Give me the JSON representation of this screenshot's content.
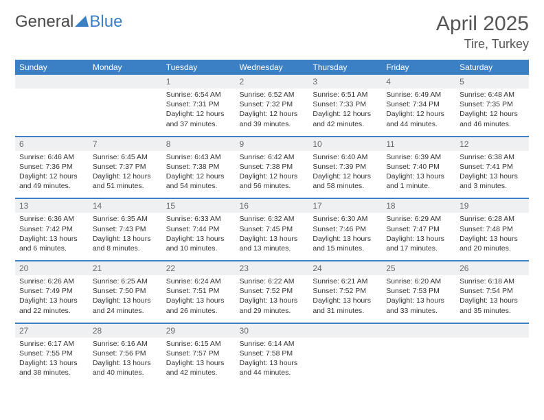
{
  "logo": {
    "text1": "General",
    "text2": "Blue",
    "triangle_color": "#3b7fc4"
  },
  "title": "April 2025",
  "location": "Tire, Turkey",
  "colors": {
    "header_bg": "#3b7fc4",
    "header_text": "#ffffff",
    "daynum_bg": "#eef0f1",
    "daynum_text": "#6a6a6a",
    "week_border": "#3b7fc4",
    "body_text": "#333333",
    "title_text": "#555555"
  },
  "day_names": [
    "Sunday",
    "Monday",
    "Tuesday",
    "Wednesday",
    "Thursday",
    "Friday",
    "Saturday"
  ],
  "weeks": [
    [
      null,
      null,
      {
        "n": "1",
        "sr": "6:54 AM",
        "ss": "7:31 PM",
        "dl": "12 hours and 37 minutes."
      },
      {
        "n": "2",
        "sr": "6:52 AM",
        "ss": "7:32 PM",
        "dl": "12 hours and 39 minutes."
      },
      {
        "n": "3",
        "sr": "6:51 AM",
        "ss": "7:33 PM",
        "dl": "12 hours and 42 minutes."
      },
      {
        "n": "4",
        "sr": "6:49 AM",
        "ss": "7:34 PM",
        "dl": "12 hours and 44 minutes."
      },
      {
        "n": "5",
        "sr": "6:48 AM",
        "ss": "7:35 PM",
        "dl": "12 hours and 46 minutes."
      }
    ],
    [
      {
        "n": "6",
        "sr": "6:46 AM",
        "ss": "7:36 PM",
        "dl": "12 hours and 49 minutes."
      },
      {
        "n": "7",
        "sr": "6:45 AM",
        "ss": "7:37 PM",
        "dl": "12 hours and 51 minutes."
      },
      {
        "n": "8",
        "sr": "6:43 AM",
        "ss": "7:38 PM",
        "dl": "12 hours and 54 minutes."
      },
      {
        "n": "9",
        "sr": "6:42 AM",
        "ss": "7:38 PM",
        "dl": "12 hours and 56 minutes."
      },
      {
        "n": "10",
        "sr": "6:40 AM",
        "ss": "7:39 PM",
        "dl": "12 hours and 58 minutes."
      },
      {
        "n": "11",
        "sr": "6:39 AM",
        "ss": "7:40 PM",
        "dl": "13 hours and 1 minute."
      },
      {
        "n": "12",
        "sr": "6:38 AM",
        "ss": "7:41 PM",
        "dl": "13 hours and 3 minutes."
      }
    ],
    [
      {
        "n": "13",
        "sr": "6:36 AM",
        "ss": "7:42 PM",
        "dl": "13 hours and 6 minutes."
      },
      {
        "n": "14",
        "sr": "6:35 AM",
        "ss": "7:43 PM",
        "dl": "13 hours and 8 minutes."
      },
      {
        "n": "15",
        "sr": "6:33 AM",
        "ss": "7:44 PM",
        "dl": "13 hours and 10 minutes."
      },
      {
        "n": "16",
        "sr": "6:32 AM",
        "ss": "7:45 PM",
        "dl": "13 hours and 13 minutes."
      },
      {
        "n": "17",
        "sr": "6:30 AM",
        "ss": "7:46 PM",
        "dl": "13 hours and 15 minutes."
      },
      {
        "n": "18",
        "sr": "6:29 AM",
        "ss": "7:47 PM",
        "dl": "13 hours and 17 minutes."
      },
      {
        "n": "19",
        "sr": "6:28 AM",
        "ss": "7:48 PM",
        "dl": "13 hours and 20 minutes."
      }
    ],
    [
      {
        "n": "20",
        "sr": "6:26 AM",
        "ss": "7:49 PM",
        "dl": "13 hours and 22 minutes."
      },
      {
        "n": "21",
        "sr": "6:25 AM",
        "ss": "7:50 PM",
        "dl": "13 hours and 24 minutes."
      },
      {
        "n": "22",
        "sr": "6:24 AM",
        "ss": "7:51 PM",
        "dl": "13 hours and 26 minutes."
      },
      {
        "n": "23",
        "sr": "6:22 AM",
        "ss": "7:52 PM",
        "dl": "13 hours and 29 minutes."
      },
      {
        "n": "24",
        "sr": "6:21 AM",
        "ss": "7:52 PM",
        "dl": "13 hours and 31 minutes."
      },
      {
        "n": "25",
        "sr": "6:20 AM",
        "ss": "7:53 PM",
        "dl": "13 hours and 33 minutes."
      },
      {
        "n": "26",
        "sr": "6:18 AM",
        "ss": "7:54 PM",
        "dl": "13 hours and 35 minutes."
      }
    ],
    [
      {
        "n": "27",
        "sr": "6:17 AM",
        "ss": "7:55 PM",
        "dl": "13 hours and 38 minutes."
      },
      {
        "n": "28",
        "sr": "6:16 AM",
        "ss": "7:56 PM",
        "dl": "13 hours and 40 minutes."
      },
      {
        "n": "29",
        "sr": "6:15 AM",
        "ss": "7:57 PM",
        "dl": "13 hours and 42 minutes."
      },
      {
        "n": "30",
        "sr": "6:14 AM",
        "ss": "7:58 PM",
        "dl": "13 hours and 44 minutes."
      },
      null,
      null,
      null
    ]
  ],
  "labels": {
    "sunrise": "Sunrise:",
    "sunset": "Sunset:",
    "daylight": "Daylight:"
  }
}
